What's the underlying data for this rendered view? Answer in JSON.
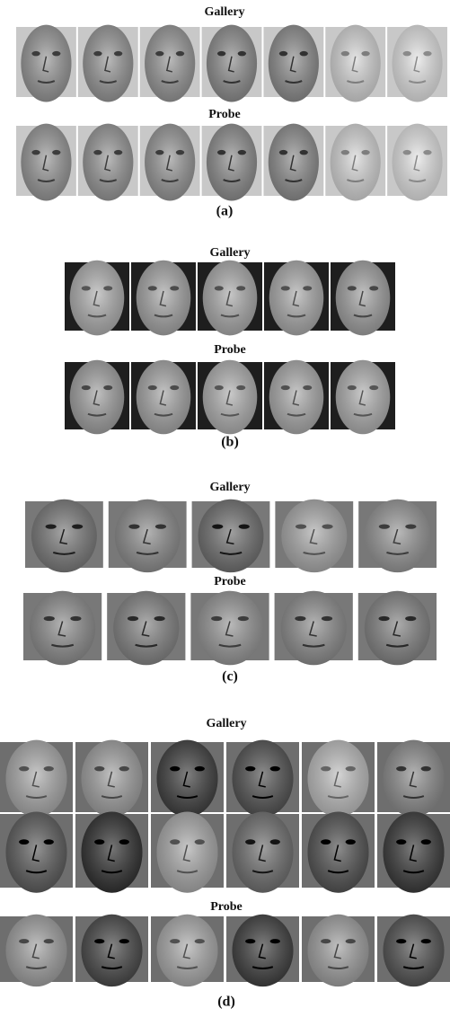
{
  "panels": [
    {
      "gallery": "Gallery",
      "probe": "Probe",
      "caption": "(a)"
    },
    {
      "gallery": "Gallery",
      "probe": "Probe",
      "caption": "(b)"
    },
    {
      "gallery": "Gallery",
      "probe": "Probe",
      "caption": "(c)"
    },
    {
      "gallery": "Gallery",
      "probe": "Probe",
      "caption": "(d)"
    }
  ]
}
